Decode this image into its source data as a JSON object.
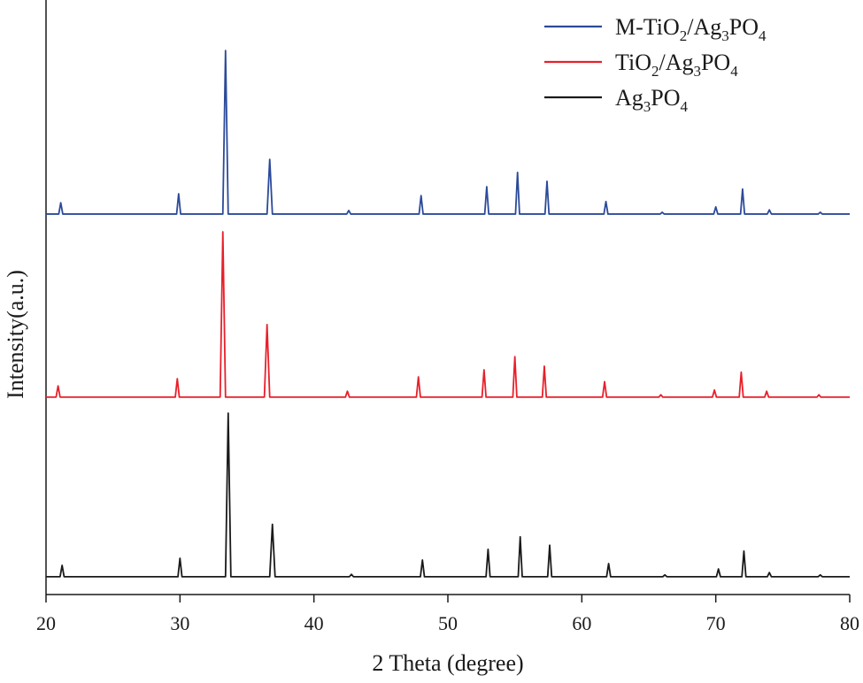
{
  "chart_data": {
    "type": "line",
    "xlabel": "2 Theta (degree)",
    "ylabel": "Intensity(a.u.)",
    "xlim": [
      20,
      80
    ],
    "xticks": [
      20,
      30,
      40,
      50,
      60,
      70,
      80
    ],
    "ylim": [
      0,
      100
    ],
    "series": [
      {
        "name": "M-TiO2/Ag3PO4",
        "color": "#2b4a9a",
        "x": [
          20,
          20.95,
          21.1,
          21.25,
          29.75,
          29.9,
          30.05,
          33.2,
          33.4,
          33.6,
          36.5,
          36.7,
          36.9,
          42.45,
          42.6,
          42.75,
          47.85,
          48.0,
          48.15,
          52.75,
          52.9,
          53.05,
          55.05,
          55.2,
          55.35,
          57.25,
          57.4,
          57.55,
          61.65,
          61.8,
          61.95,
          65.85,
          66.0,
          66.15,
          69.85,
          70.0,
          70.15,
          71.85,
          72.0,
          72.15,
          73.85,
          74.0,
          74.15,
          77.65,
          77.8,
          77.95,
          80
        ],
        "values": [
          64.0,
          64.0,
          65.9,
          64.0,
          64.0,
          67.4,
          64.0,
          64.0,
          91.5,
          64.0,
          64.0,
          73.2,
          64.0,
          64.0,
          64.6,
          64.0,
          64.0,
          67.1,
          64.0,
          64.0,
          68.6,
          64.0,
          64.0,
          71.0,
          64.0,
          64.0,
          69.5,
          64.0,
          64.0,
          66.1,
          64.0,
          64.0,
          64.3,
          64.0,
          64.0,
          65.2,
          64.0,
          64.0,
          68.2,
          64.0,
          64.0,
          64.7,
          64.0,
          64.0,
          64.3,
          64.0,
          64.0
        ]
      },
      {
        "name": "TiO2/Ag3PO4",
        "color": "#e8202a",
        "x": [
          20,
          20.75,
          20.9,
          21.05,
          29.65,
          29.8,
          29.95,
          33.0,
          33.2,
          33.4,
          36.3,
          36.5,
          36.7,
          42.35,
          42.5,
          42.65,
          47.65,
          47.8,
          47.95,
          52.55,
          52.7,
          52.85,
          54.85,
          55.0,
          55.15,
          57.05,
          57.2,
          57.35,
          61.55,
          61.7,
          61.85,
          65.75,
          65.9,
          66.05,
          69.75,
          69.9,
          70.05,
          71.75,
          71.9,
          72.05,
          73.65,
          73.8,
          73.95,
          77.55,
          77.7,
          77.85,
          80
        ],
        "values": [
          33.2,
          33.2,
          35.1,
          33.2,
          33.2,
          36.3,
          33.2,
          33.2,
          61.0,
          33.2,
          33.2,
          45.4,
          33.2,
          33.2,
          34.2,
          33.2,
          33.2,
          36.6,
          33.2,
          33.2,
          37.8,
          33.2,
          33.2,
          40.0,
          33.2,
          33.2,
          38.4,
          33.2,
          33.2,
          35.8,
          33.2,
          33.2,
          33.6,
          33.2,
          33.2,
          34.4,
          33.2,
          33.2,
          37.4,
          33.2,
          33.2,
          34.2,
          33.2,
          33.2,
          33.6,
          33.2,
          33.2
        ]
      },
      {
        "name": "Ag3PO4",
        "color": "#1a1a1a",
        "x": [
          20,
          21.05,
          21.2,
          21.35,
          29.85,
          30.0,
          30.15,
          33.4,
          33.6,
          33.8,
          36.7,
          36.9,
          37.1,
          42.65,
          42.8,
          42.95,
          47.95,
          48.1,
          48.25,
          52.85,
          53.0,
          53.15,
          55.25,
          55.4,
          55.55,
          57.45,
          57.6,
          57.75,
          61.85,
          62.0,
          62.15,
          66.05,
          66.2,
          66.35,
          70.05,
          70.2,
          70.35,
          71.95,
          72.1,
          72.25,
          73.85,
          74.0,
          74.15,
          77.65,
          77.8,
          77.95,
          80
        ],
        "values": [
          3.0,
          3.0,
          4.9,
          3.0,
          3.0,
          6.1,
          3.0,
          3.0,
          30.5,
          3.0,
          3.0,
          11.8,
          3.0,
          3.0,
          3.4,
          3.0,
          3.0,
          5.8,
          3.0,
          3.0,
          7.6,
          3.0,
          3.0,
          9.7,
          3.0,
          3.0,
          8.3,
          3.0,
          3.0,
          5.2,
          3.0,
          3.0,
          3.3,
          3.0,
          3.0,
          4.3,
          3.0,
          3.0,
          7.3,
          3.0,
          3.0,
          3.7,
          3.0,
          3.0,
          3.3,
          3.0,
          3.0
        ]
      }
    ]
  }
}
